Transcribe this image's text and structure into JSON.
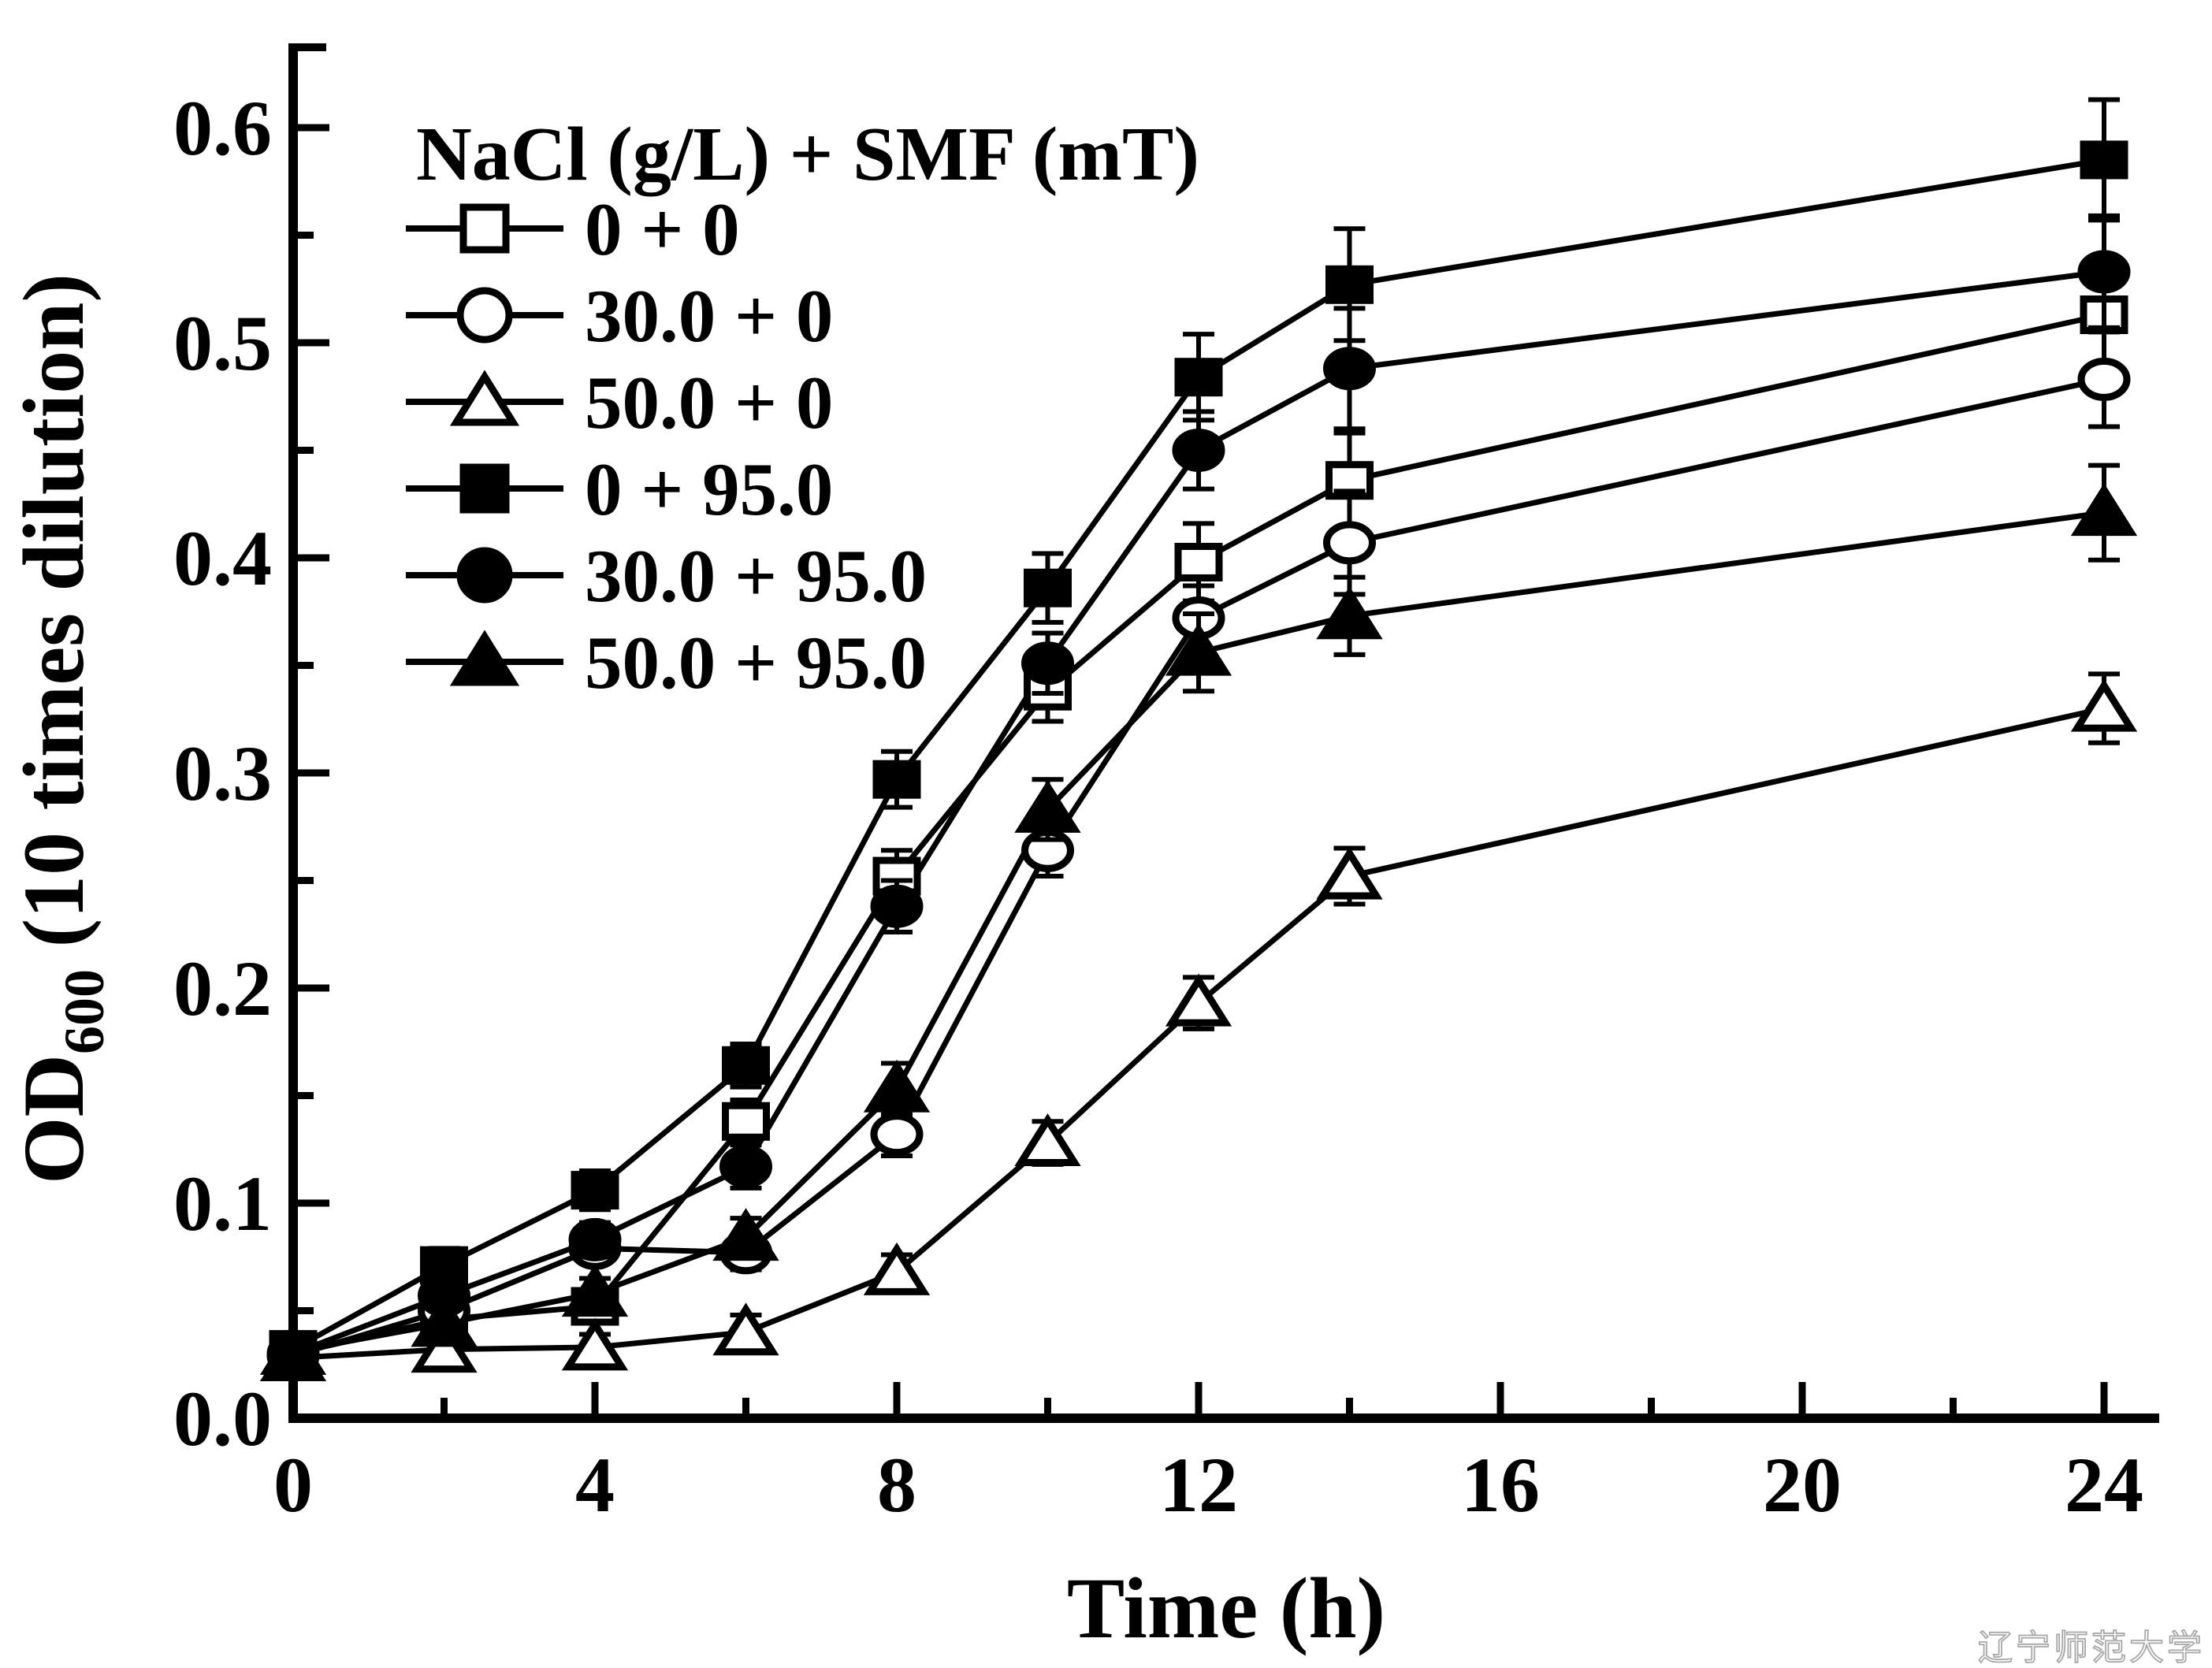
{
  "figure": {
    "background": "#ffffff",
    "ink": "#000000",
    "watermark": "辽宁师范大学"
  },
  "chart_data": {
    "type": "line",
    "title": "",
    "xlabel": "Time (h)",
    "ylabel": {
      "prefix": "OD",
      "subscript": "600",
      "suffix": " (10 times dilution)",
      "text": "OD600 (10 times dilution)"
    },
    "xlim": [
      0,
      24.7
    ],
    "ylim": [
      0,
      0.639
    ],
    "grid": false,
    "xticks": {
      "major": [
        0,
        4,
        8,
        12,
        16,
        20,
        24
      ],
      "minor": [
        2,
        6,
        10,
        14,
        18,
        22
      ]
    },
    "yticks": {
      "major": [
        0.0,
        0.1,
        0.2,
        0.3,
        0.4,
        0.5,
        0.6
      ],
      "minor": [
        0.05,
        0.15,
        0.25,
        0.35,
        0.45,
        0.55
      ]
    },
    "legend": {
      "title": "NaCl (g/L) + SMF (mT)",
      "position": "upper-left"
    },
    "x": [
      0,
      2,
      4,
      6,
      8,
      10,
      12,
      14,
      24
    ],
    "series": [
      {
        "name": "0 + 0",
        "marker": "square",
        "fill": "open",
        "values": [
          0.03,
          0.046,
          0.052,
          0.138,
          0.252,
          0.338,
          0.398,
          0.436,
          0.513
        ],
        "errors": [
          0.004,
          0.005,
          0.006,
          0.01,
          0.012,
          0.014,
          0.018,
          0.022,
          0.026
        ]
      },
      {
        "name": "30.0 + 0",
        "marker": "circle",
        "fill": "open",
        "values": [
          0.029,
          0.05,
          0.079,
          0.077,
          0.132,
          0.264,
          0.372,
          0.407,
          0.483
        ],
        "errors": [
          0.004,
          0.005,
          0.006,
          0.008,
          0.01,
          0.012,
          0.015,
          0.024,
          0.022
        ]
      },
      {
        "name": "50.0 + 0",
        "marker": "triangle",
        "fill": "open",
        "values": [
          0.028,
          0.032,
          0.033,
          0.04,
          0.068,
          0.128,
          0.193,
          0.252,
          0.33
        ],
        "errors": [
          0.004,
          0.005,
          0.006,
          0.008,
          0.008,
          0.01,
          0.012,
          0.013,
          0.016
        ]
      },
      {
        "name": "0 + 95.0",
        "marker": "square",
        "fill": "solid",
        "values": [
          0.032,
          0.071,
          0.106,
          0.164,
          0.297,
          0.386,
          0.484,
          0.527,
          0.585
        ],
        "errors": [
          0.005,
          0.008,
          0.009,
          0.01,
          0.013,
          0.016,
          0.02,
          0.026,
          0.028
        ]
      },
      {
        "name": "30.0 + 95.0",
        "marker": "circle",
        "fill": "solid",
        "values": [
          0.03,
          0.057,
          0.083,
          0.117,
          0.238,
          0.351,
          0.45,
          0.488,
          0.533
        ],
        "errors": [
          0.004,
          0.006,
          0.008,
          0.01,
          0.012,
          0.014,
          0.018,
          0.028,
          0.026
        ]
      },
      {
        "name": "50.0 + 95.0",
        "marker": "triangle",
        "fill": "solid",
        "values": [
          0.031,
          0.044,
          0.058,
          0.084,
          0.153,
          0.283,
          0.356,
          0.373,
          0.421
        ],
        "errors": [
          0.004,
          0.006,
          0.007,
          0.009,
          0.012,
          0.014,
          0.018,
          0.018,
          0.022
        ]
      }
    ]
  }
}
